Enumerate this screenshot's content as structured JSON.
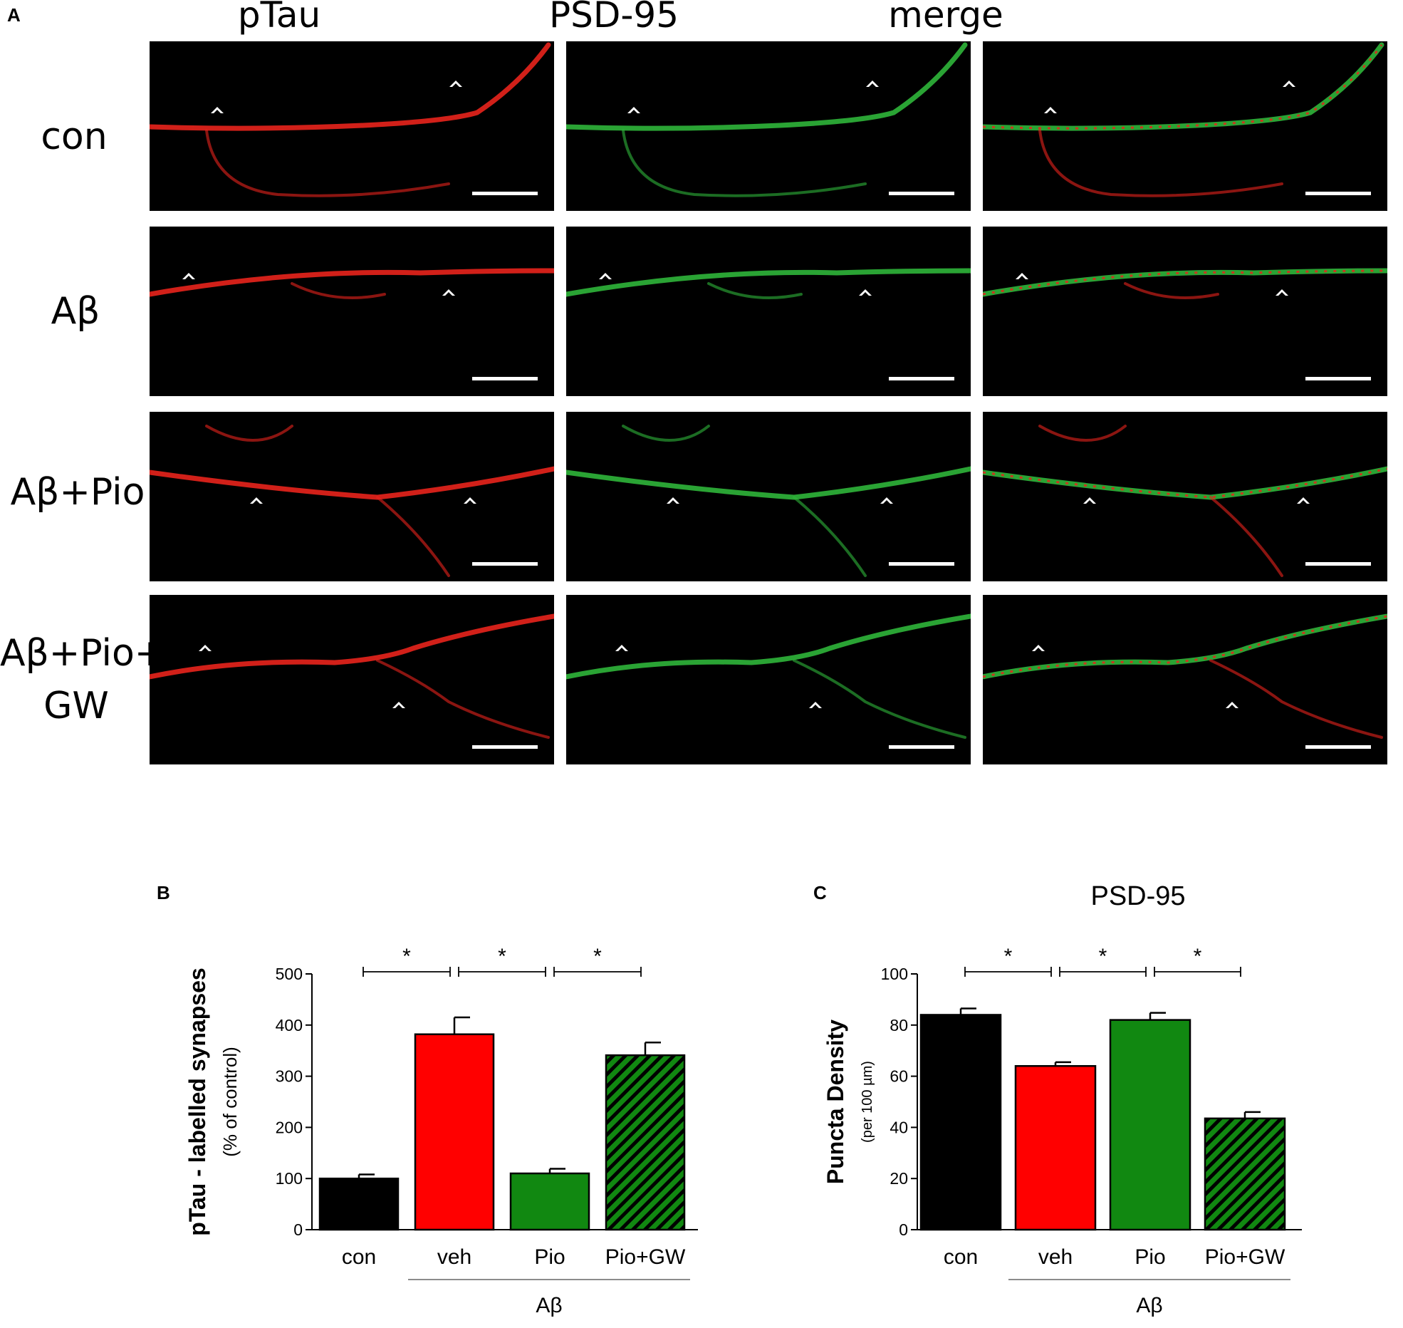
{
  "panel_a": {
    "letter": "A",
    "columns": [
      {
        "title": "pTau",
        "color": "#e0141e"
      },
      {
        "title": "PSD-95",
        "color": "#1aa040"
      },
      {
        "title": "merge",
        "color": "#f0b020"
      }
    ],
    "rows": [
      {
        "label": "con"
      },
      {
        "label": "Aβ"
      },
      {
        "label": "Aβ+Pio"
      },
      {
        "label_line1": "Aβ+Pio+",
        "label_line2": "GW"
      }
    ],
    "channel_colors": {
      "red": "#e8231c",
      "green": "#2fb53a",
      "merge": "#b0a830"
    }
  },
  "chart_data": [
    {
      "letter": "B",
      "type": "bar",
      "title": "",
      "ylabel": "pTau - labelled synapses",
      "ylabel_sub": "(% of control)",
      "ylim": [
        0,
        500
      ],
      "yticks": [
        0,
        100,
        200,
        300,
        400,
        500
      ],
      "categories": [
        "con",
        "veh",
        "Pio",
        "Pio+GW"
      ],
      "values": [
        100,
        382,
        110,
        341
      ],
      "errors": [
        8,
        33,
        9,
        25
      ],
      "fills": [
        "#000000",
        "#ff0000",
        "#118811",
        "hatch-green"
      ],
      "group_label": "Aβ",
      "significance": [
        {
          "from": 0,
          "to": 1,
          "label": "*"
        },
        {
          "from": 1,
          "to": 2,
          "label": "*"
        },
        {
          "from": 2,
          "to": 3,
          "label": "*"
        }
      ]
    },
    {
      "letter": "C",
      "type": "bar",
      "title": "PSD-95",
      "ylabel": "Puncta Density",
      "ylabel_sub": "(per 100 µm)",
      "ylim": [
        0,
        100
      ],
      "yticks": [
        0,
        20,
        40,
        60,
        80,
        100
      ],
      "categories": [
        "con",
        "veh",
        "Pio",
        "Pio+GW"
      ],
      "values": [
        84,
        64,
        82,
        43.5
      ],
      "errors": [
        2.5,
        1.5,
        2.8,
        2.5
      ],
      "fills": [
        "#000000",
        "#ff0000",
        "#118811",
        "hatch-green"
      ],
      "group_label": "Aβ",
      "significance": [
        {
          "from": 0,
          "to": 1,
          "label": "*"
        },
        {
          "from": 1,
          "to": 2,
          "label": "*"
        },
        {
          "from": 2,
          "to": 3,
          "label": "*"
        }
      ]
    }
  ]
}
